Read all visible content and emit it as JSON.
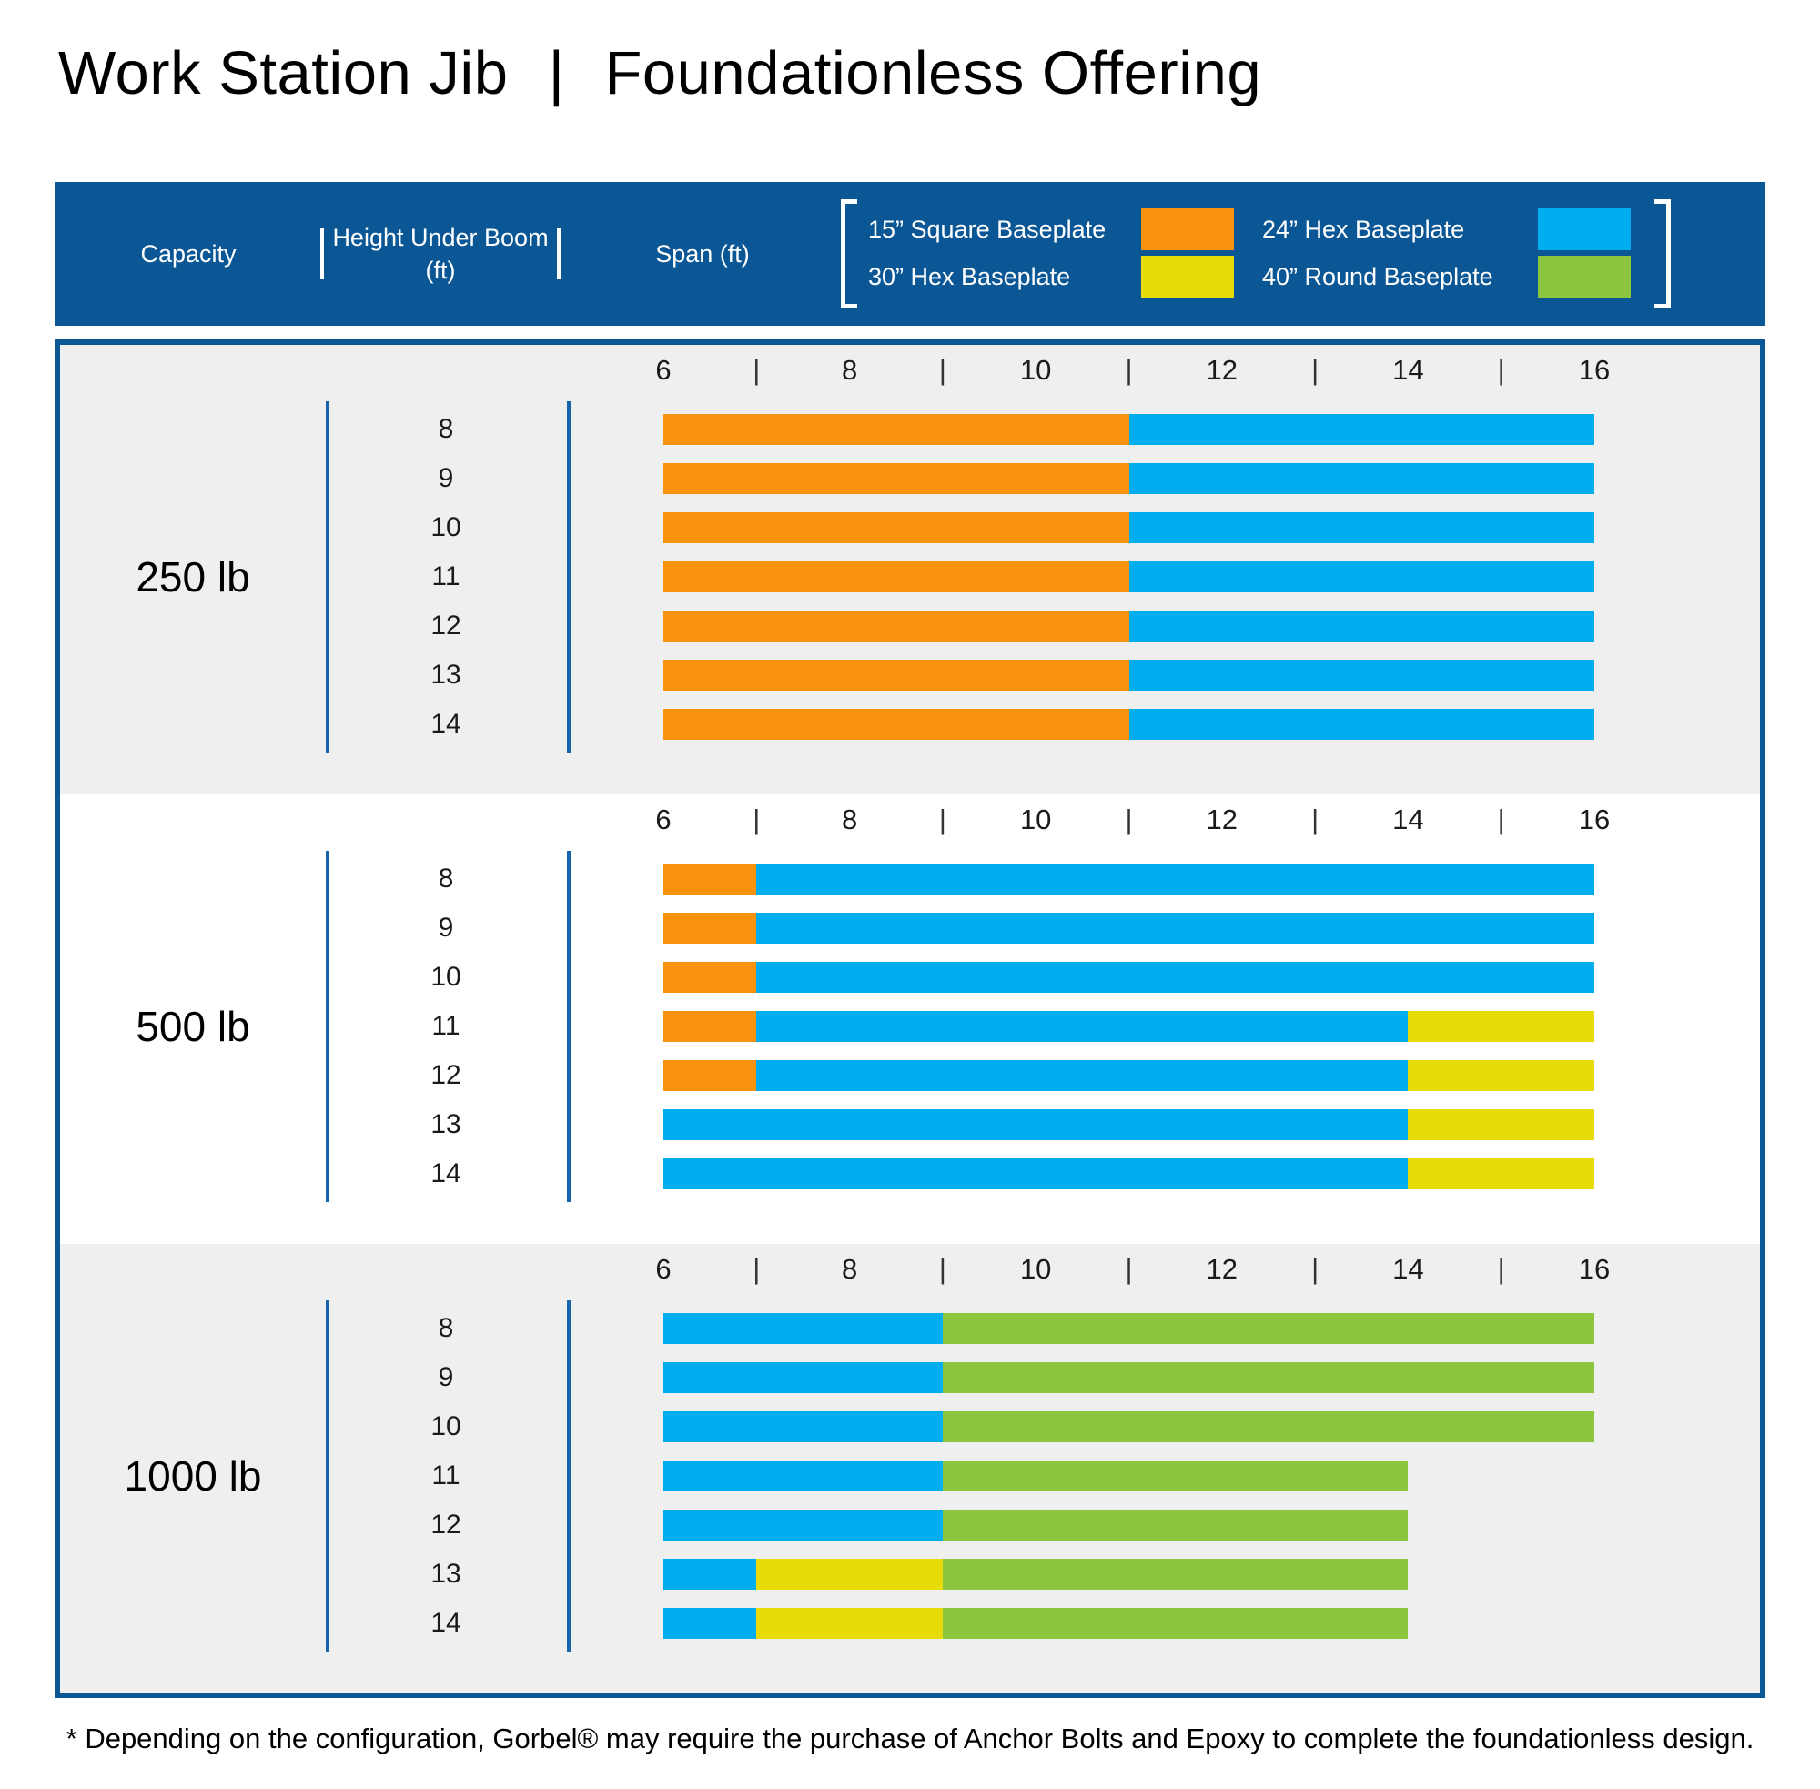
{
  "title": {
    "left": "Work Station Jib",
    "separator": "|",
    "right": "Foundationless Offering"
  },
  "header": {
    "capacity_label": "Capacity",
    "height_label": "Height Under Boom (ft)",
    "span_label": "Span (ft)"
  },
  "legend": {
    "items": [
      {
        "label": "15” Square Baseplate",
        "color_key": "orange"
      },
      {
        "label": "30” Hex Baseplate",
        "color_key": "yellow"
      },
      {
        "label": "24” Hex Baseplate",
        "color_key": "blue"
      },
      {
        "label": "40” Round Baseplate",
        "color_key": "green"
      }
    ]
  },
  "colors": {
    "orange": "#F9920D",
    "blue": "#00AEEF",
    "yellow": "#E7DC09",
    "green": "#8CC63F",
    "header_blue": "#0B5796",
    "line_blue": "#1565AE",
    "section_bg": "#EFEFEF",
    "text_dark": "#1A1A1A"
  },
  "footnote": "* Depending on the configuration, Gorbel® may require the purchase of Anchor Bolts and Epoxy to complete the foundationless design.",
  "chart_data": {
    "type": "bar",
    "title": "Work Station Jib | Foundationless Offering",
    "x_axis": {
      "label": "Span (ft)",
      "min": 6,
      "max": 16,
      "major_ticks": [
        6,
        8,
        10,
        12,
        14,
        16
      ],
      "separator_positions": [
        7,
        9,
        11,
        13,
        15
      ],
      "separator_glyph": "|"
    },
    "sections": [
      {
        "capacity": "250 lb",
        "background": "gray",
        "rows": [
          {
            "height_under_boom": 8,
            "segments": [
              {
                "from": 6,
                "to": 11,
                "color": "orange"
              },
              {
                "from": 11,
                "to": 16,
                "color": "blue"
              }
            ]
          },
          {
            "height_under_boom": 9,
            "segments": [
              {
                "from": 6,
                "to": 11,
                "color": "orange"
              },
              {
                "from": 11,
                "to": 16,
                "color": "blue"
              }
            ]
          },
          {
            "height_under_boom": 10,
            "segments": [
              {
                "from": 6,
                "to": 11,
                "color": "orange"
              },
              {
                "from": 11,
                "to": 16,
                "color": "blue"
              }
            ]
          },
          {
            "height_under_boom": 11,
            "segments": [
              {
                "from": 6,
                "to": 11,
                "color": "orange"
              },
              {
                "from": 11,
                "to": 16,
                "color": "blue"
              }
            ]
          },
          {
            "height_under_boom": 12,
            "segments": [
              {
                "from": 6,
                "to": 11,
                "color": "orange"
              },
              {
                "from": 11,
                "to": 16,
                "color": "blue"
              }
            ]
          },
          {
            "height_under_boom": 13,
            "segments": [
              {
                "from": 6,
                "to": 11,
                "color": "orange"
              },
              {
                "from": 11,
                "to": 16,
                "color": "blue"
              }
            ]
          },
          {
            "height_under_boom": 14,
            "segments": [
              {
                "from": 6,
                "to": 11,
                "color": "orange"
              },
              {
                "from": 11,
                "to": 16,
                "color": "blue"
              }
            ]
          }
        ]
      },
      {
        "capacity": "500 lb",
        "background": "white",
        "rows": [
          {
            "height_under_boom": 8,
            "segments": [
              {
                "from": 6,
                "to": 7,
                "color": "orange"
              },
              {
                "from": 7,
                "to": 16,
                "color": "blue"
              }
            ]
          },
          {
            "height_under_boom": 9,
            "segments": [
              {
                "from": 6,
                "to": 7,
                "color": "orange"
              },
              {
                "from": 7,
                "to": 16,
                "color": "blue"
              }
            ]
          },
          {
            "height_under_boom": 10,
            "segments": [
              {
                "from": 6,
                "to": 7,
                "color": "orange"
              },
              {
                "from": 7,
                "to": 16,
                "color": "blue"
              }
            ]
          },
          {
            "height_under_boom": 11,
            "segments": [
              {
                "from": 6,
                "to": 7,
                "color": "orange"
              },
              {
                "from": 7,
                "to": 14,
                "color": "blue"
              },
              {
                "from": 14,
                "to": 16,
                "color": "yellow"
              }
            ]
          },
          {
            "height_under_boom": 12,
            "segments": [
              {
                "from": 6,
                "to": 7,
                "color": "orange"
              },
              {
                "from": 7,
                "to": 14,
                "color": "blue"
              },
              {
                "from": 14,
                "to": 16,
                "color": "yellow"
              }
            ]
          },
          {
            "height_under_boom": 13,
            "segments": [
              {
                "from": 6,
                "to": 14,
                "color": "blue"
              },
              {
                "from": 14,
                "to": 16,
                "color": "yellow"
              }
            ]
          },
          {
            "height_under_boom": 14,
            "segments": [
              {
                "from": 6,
                "to": 14,
                "color": "blue"
              },
              {
                "from": 14,
                "to": 16,
                "color": "yellow"
              }
            ]
          }
        ]
      },
      {
        "capacity": "1000 lb",
        "background": "gray",
        "rows": [
          {
            "height_under_boom": 8,
            "segments": [
              {
                "from": 6,
                "to": 9,
                "color": "blue"
              },
              {
                "from": 9,
                "to": 16,
                "color": "green"
              }
            ]
          },
          {
            "height_under_boom": 9,
            "segments": [
              {
                "from": 6,
                "to": 9,
                "color": "blue"
              },
              {
                "from": 9,
                "to": 16,
                "color": "green"
              }
            ]
          },
          {
            "height_under_boom": 10,
            "segments": [
              {
                "from": 6,
                "to": 9,
                "color": "blue"
              },
              {
                "from": 9,
                "to": 16,
                "color": "green"
              }
            ]
          },
          {
            "height_under_boom": 11,
            "segments": [
              {
                "from": 6,
                "to": 9,
                "color": "blue"
              },
              {
                "from": 9,
                "to": 14,
                "color": "green"
              }
            ]
          },
          {
            "height_under_boom": 12,
            "segments": [
              {
                "from": 6,
                "to": 9,
                "color": "blue"
              },
              {
                "from": 9,
                "to": 14,
                "color": "green"
              }
            ]
          },
          {
            "height_under_boom": 13,
            "segments": [
              {
                "from": 6,
                "to": 7,
                "color": "blue"
              },
              {
                "from": 7,
                "to": 9,
                "color": "yellow"
              },
              {
                "from": 9,
                "to": 14,
                "color": "green"
              }
            ]
          },
          {
            "height_under_boom": 14,
            "segments": [
              {
                "from": 6,
                "to": 7,
                "color": "blue"
              },
              {
                "from": 7,
                "to": 9,
                "color": "yellow"
              },
              {
                "from": 9,
                "to": 14,
                "color": "green"
              }
            ]
          }
        ]
      }
    ]
  }
}
